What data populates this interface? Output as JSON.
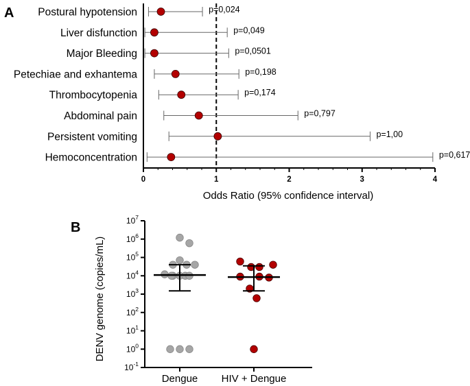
{
  "chart_data": [
    {
      "panel": "A",
      "type": "forest",
      "categories": [
        "Postural hypotension",
        "Liver disfunction",
        "Major Bleeding",
        "Petechiae and exhantema",
        "Thrombocytopenia",
        "Abdominal pain",
        "Persistent vomiting",
        "Hemoconcentration"
      ],
      "odds_ratio": [
        0.24,
        0.15,
        0.15,
        0.44,
        0.52,
        0.76,
        1.02,
        0.38
      ],
      "ci_low": [
        0.07,
        0.02,
        0.02,
        0.15,
        0.21,
        0.28,
        0.35,
        0.05
      ],
      "ci_high": [
        0.81,
        1.15,
        1.17,
        1.31,
        1.3,
        2.12,
        3.11,
        3.97
      ],
      "p_values": [
        "p=0,024",
        "p=0,049",
        "p=0,0501",
        "p=0,198",
        "p=0,174",
        "p=0,797",
        "p=1,00",
        "p=0,617"
      ],
      "xlabel": "Odds Ratio (95% confidence interval)",
      "xlim": [
        0,
        4
      ],
      "xticks": [
        "0",
        "1",
        "2",
        "3",
        "4"
      ],
      "reference_line": 1,
      "point_color": "#b30000"
    },
    {
      "panel": "B",
      "type": "scatter",
      "ylabel": "DENV genome (copies/mL)",
      "yscale": "log",
      "ylim_exp": [
        -1,
        7
      ],
      "ytick_base": "10",
      "ytick_exps": [
        "7",
        "6",
        "5",
        "4",
        "3",
        "2",
        "1",
        "0",
        "-1"
      ],
      "groups": [
        {
          "name": "Dengue",
          "color": "#a6a6a6",
          "values": [
            1200000,
            600000,
            70000,
            40000,
            40000,
            40000,
            12000,
            10000,
            10000,
            10000,
            10000,
            10000,
            1,
            1,
            1
          ],
          "median": 11000,
          "iqr": [
            1500,
            40000
          ]
        },
        {
          "name": "HIV + Dengue",
          "color": "#b30000",
          "values": [
            60000,
            40000,
            30000,
            30000,
            9000,
            9000,
            8000,
            2000,
            600,
            1
          ],
          "median": 8500,
          "iqr": [
            1500,
            35000
          ]
        }
      ]
    }
  ]
}
